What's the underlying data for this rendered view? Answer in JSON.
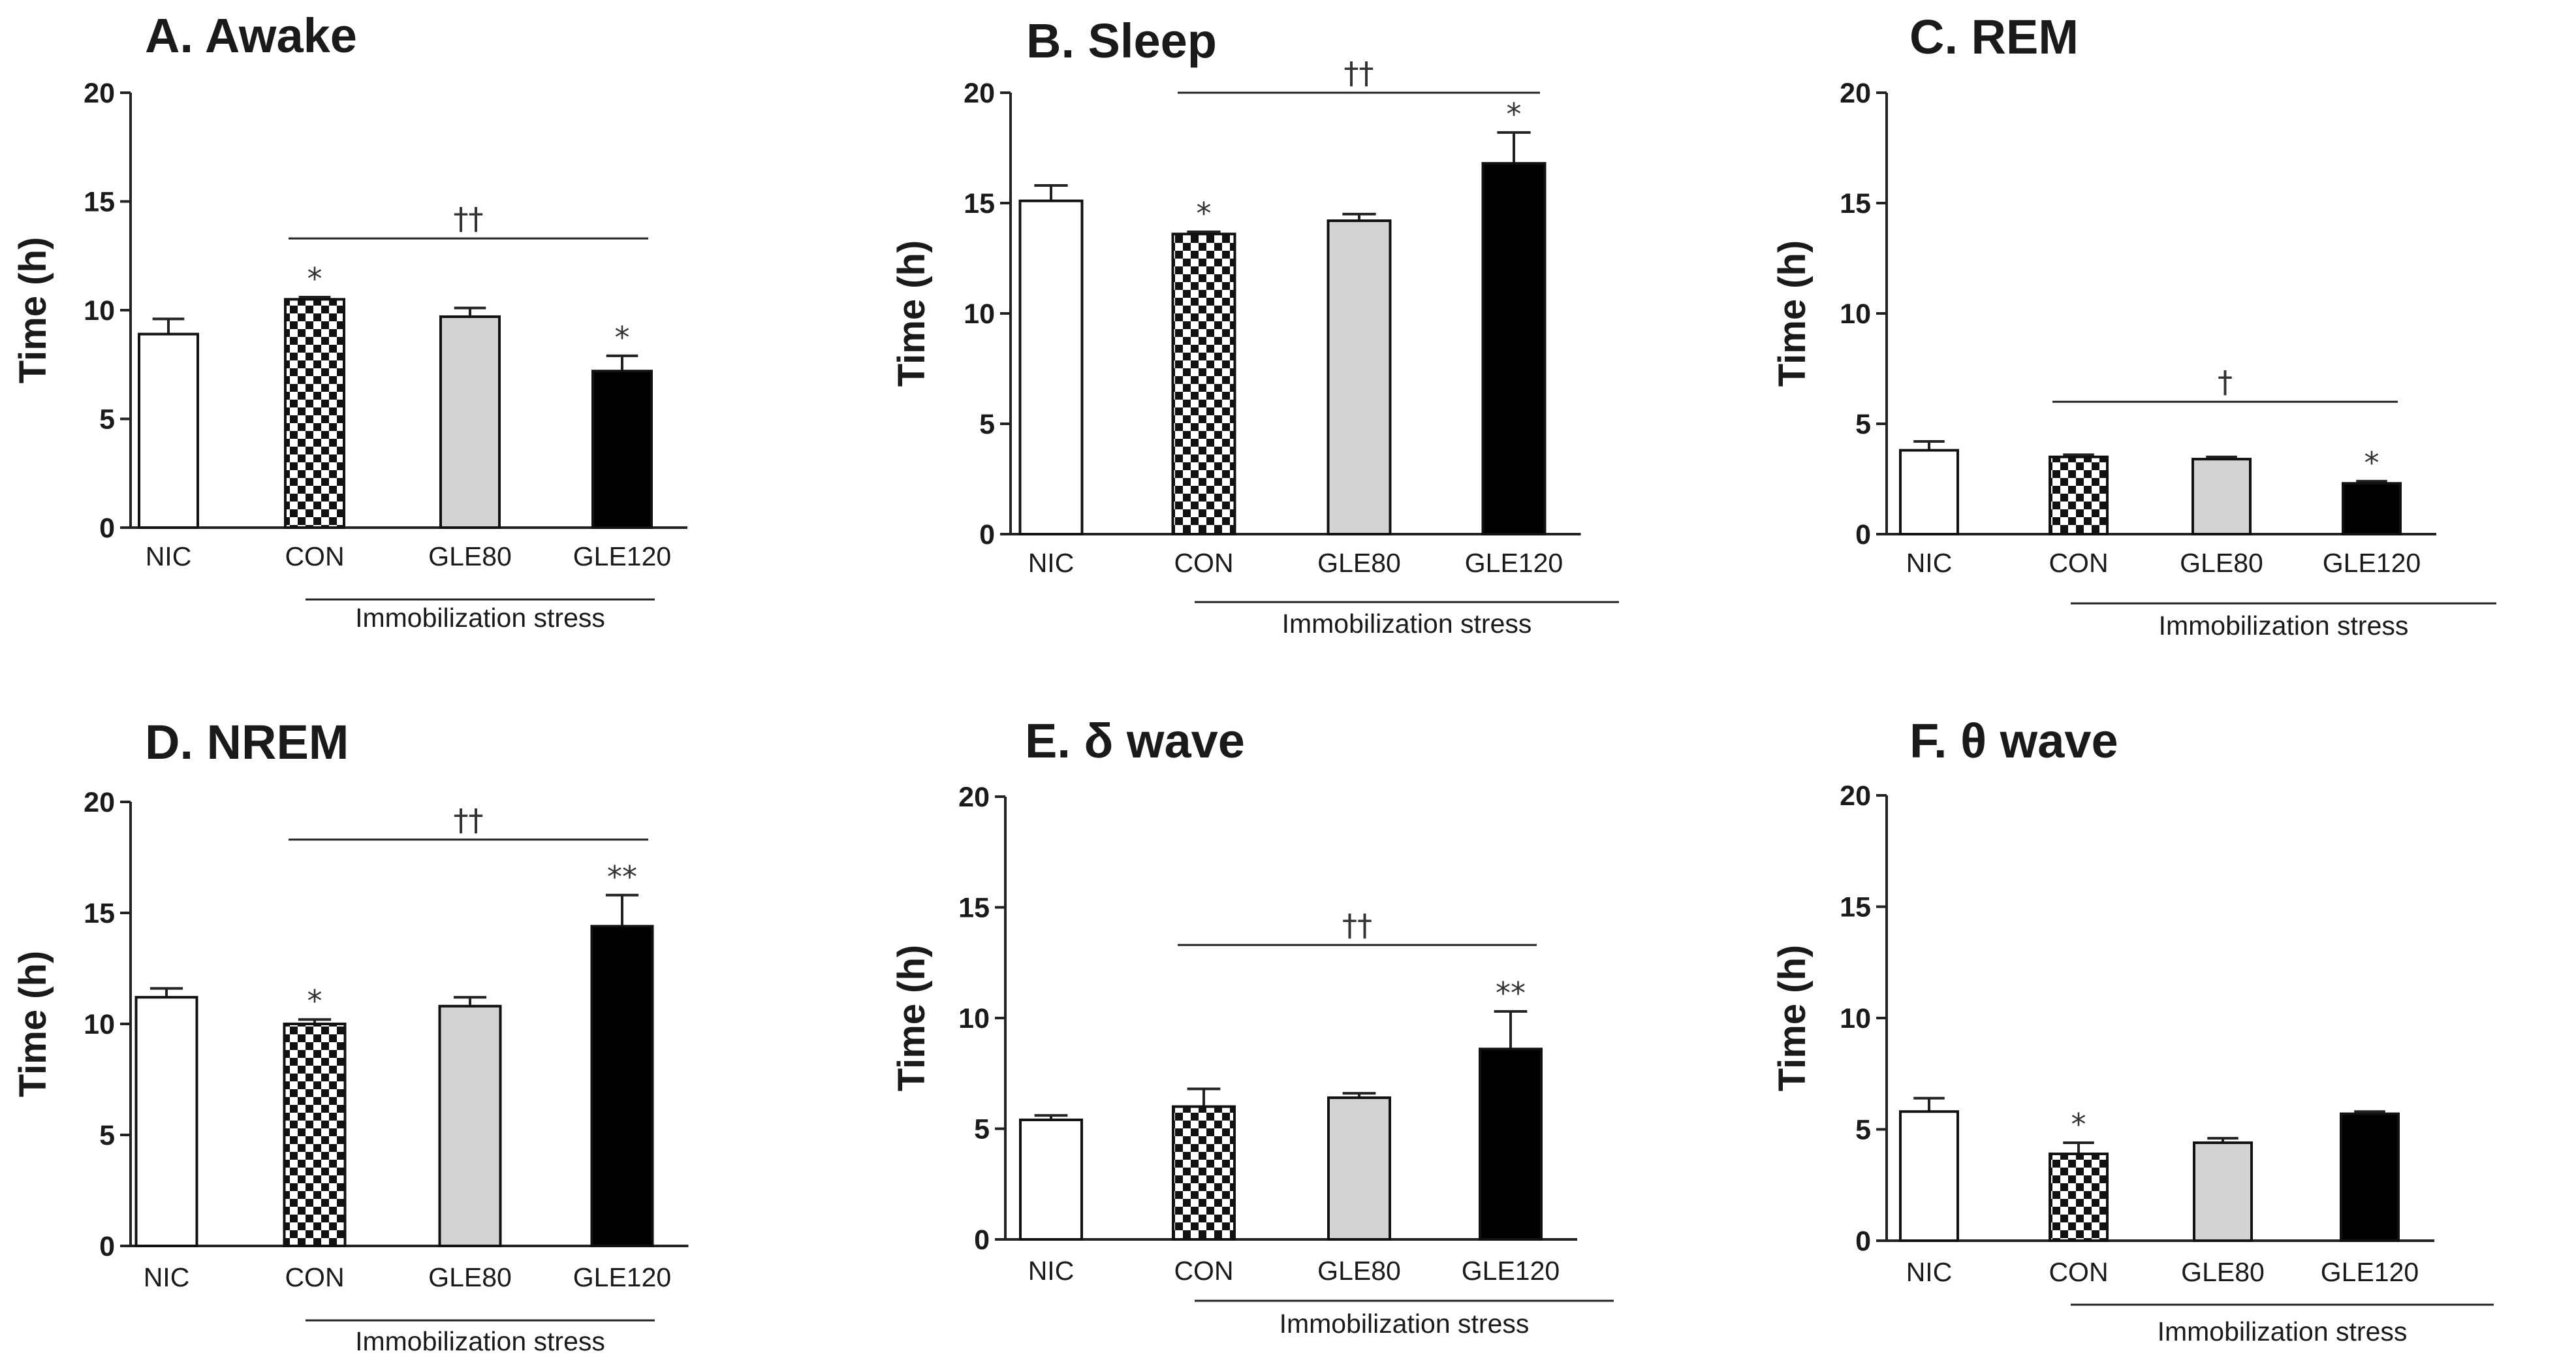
{
  "figure": {
    "colors": {
      "open": "#ffffff",
      "checker_dark": "#111111",
      "checker_light": "#ffffff",
      "gray": "#d3d3d3",
      "solid": "#000000"
    }
  },
  "chart_data": [
    {
      "type": "bar",
      "title": "A. Awake",
      "ylabel": "Time (h)",
      "ylim": [
        0,
        20
      ],
      "yticks": [
        0,
        5,
        10,
        15,
        20
      ],
      "categories": [
        "NIC",
        "CON",
        "GLE80",
        "GLE120"
      ],
      "fills": [
        "open",
        "checker",
        "gray",
        "solid"
      ],
      "values": [
        8.9,
        10.5,
        9.7,
        7.2
      ],
      "errors": [
        0.7,
        0.1,
        0.4,
        0.7
      ],
      "marks": [
        "",
        "*",
        "",
        "*"
      ],
      "group_label": "Immobilization stress",
      "bracket": {
        "from": 1,
        "to": 3,
        "y": 13.3,
        "label": "††"
      }
    },
    {
      "type": "bar",
      "title": "B. Sleep",
      "ylabel": "Time (h)",
      "ylim": [
        0,
        20
      ],
      "yticks": [
        0,
        5,
        10,
        15,
        20
      ],
      "categories": [
        "NIC",
        "CON",
        "GLE80",
        "GLE120"
      ],
      "fills": [
        "open",
        "checker",
        "gray",
        "solid"
      ],
      "values": [
        15.1,
        13.6,
        14.2,
        16.8
      ],
      "errors": [
        0.7,
        0.1,
        0.3,
        1.4
      ],
      "marks": [
        "",
        "*",
        "",
        "*"
      ],
      "group_label": "Immobilization stress",
      "bracket": {
        "from": 1,
        "to": 3,
        "y": 20.0,
        "label": "††"
      }
    },
    {
      "type": "bar",
      "title": "C.  REM",
      "ylabel": "Time (h)",
      "ylim": [
        0,
        20
      ],
      "yticks": [
        0,
        5,
        10,
        15,
        20
      ],
      "categories": [
        "NIC",
        "CON",
        "GLE80",
        "GLE120"
      ],
      "fills": [
        "open",
        "checker",
        "gray",
        "solid"
      ],
      "values": [
        3.8,
        3.5,
        3.4,
        2.3
      ],
      "errors": [
        0.4,
        0.1,
        0.1,
        0.1
      ],
      "marks": [
        "",
        "",
        "",
        "*"
      ],
      "group_label": "Immobilization stress",
      "bracket": {
        "from": 1,
        "to": 3,
        "y": 6.0,
        "label": "†"
      }
    },
    {
      "type": "bar",
      "title": "D. NREM",
      "ylabel": "Time (h)",
      "ylim": [
        0,
        20
      ],
      "yticks": [
        0,
        5,
        10,
        15,
        20
      ],
      "categories": [
        "NIC",
        "CON",
        "GLE80",
        "GLE120"
      ],
      "fills": [
        "open",
        "checker",
        "gray",
        "solid"
      ],
      "values": [
        11.2,
        10.0,
        10.8,
        14.4
      ],
      "errors": [
        0.4,
        0.2,
        0.4,
        1.4
      ],
      "marks": [
        "",
        "*",
        "",
        "**"
      ],
      "group_label": "Immobilization stress",
      "bracket": {
        "from": 1,
        "to": 3,
        "y": 18.3,
        "label": "††"
      }
    },
    {
      "type": "bar",
      "title": "E. δ wave",
      "ylabel": "Time (h)",
      "ylim": [
        0,
        20
      ],
      "yticks": [
        0,
        5,
        10,
        15,
        20
      ],
      "categories": [
        "NIC",
        "CON",
        "GLE80",
        "GLE120"
      ],
      "fills": [
        "open",
        "checker",
        "gray",
        "solid"
      ],
      "values": [
        5.4,
        6.0,
        6.4,
        8.6
      ],
      "errors": [
        0.2,
        0.8,
        0.2,
        1.7
      ],
      "marks": [
        "",
        "",
        "",
        "**"
      ],
      "group_label": "Immobilization stress",
      "bracket": {
        "from": 1,
        "to": 3,
        "y": 13.3,
        "label": "††"
      }
    },
    {
      "type": "bar",
      "title": "F. θ wave",
      "ylabel": "Time (h)",
      "ylim": [
        0,
        20
      ],
      "yticks": [
        0,
        5,
        10,
        15,
        20
      ],
      "categories": [
        "NIC",
        "CON",
        "GLE80",
        "GLE120"
      ],
      "fills": [
        "open",
        "checker",
        "gray",
        "solid"
      ],
      "values": [
        5.8,
        3.9,
        4.4,
        5.7
      ],
      "errors": [
        0.6,
        0.5,
        0.2,
        0.1
      ],
      "marks": [
        "",
        "*",
        "",
        ""
      ],
      "group_label": "Immobilization stress",
      "bracket": null
    }
  ]
}
